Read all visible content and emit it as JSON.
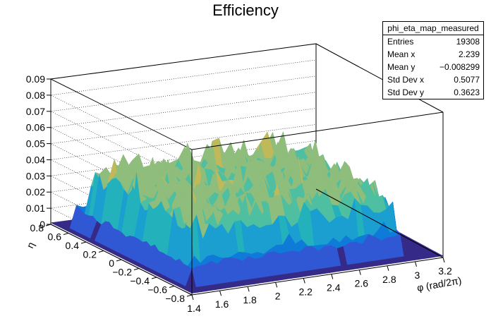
{
  "chart_data": {
    "type": "surface",
    "title": "Efficiency",
    "xlabel": "φ (rad/2π)",
    "ylabel": "η",
    "zlabel": "",
    "xlim": [
      1.4,
      3.2
    ],
    "ylim": [
      -0.8,
      0.8
    ],
    "zlim": [
      0,
      0.09
    ],
    "x_ticks": [
      "1.4",
      "1.6",
      "1.8",
      "2",
      "2.2",
      "2.4",
      "2.6",
      "2.8",
      "3",
      "3.2"
    ],
    "y_ticks": [
      "0.8",
      "0.6",
      "0.4",
      "0.2",
      "0",
      "−0.2",
      "−0.4",
      "−0.6",
      "−0.8"
    ],
    "z_ticks": [
      "0",
      "0.01",
      "0.02",
      "0.03",
      "0.04",
      "0.05",
      "0.06",
      "0.07",
      "0.08",
      "0.09"
    ],
    "colormap": [
      "#352a87",
      "#3158d4",
      "#0f7bd9",
      "#1a9fd0",
      "#23b2bc",
      "#4ebfa0",
      "#8ebd7c",
      "#c0b95a",
      "#e8b838",
      "#f9d523"
    ],
    "surface_summary": "Flat near 0 at φ<1.45 and φ>3.05 and |η|>0.7; jagged plateau ~0.03–0.05 with spikes up to ~0.06 elsewhere",
    "grid": true
  },
  "stats_box": {
    "name": "phi_eta_map_measured",
    "rows": [
      {
        "label": "Entries",
        "value": "19308"
      },
      {
        "label": "Mean x",
        "value": "2.239"
      },
      {
        "label": "Mean y",
        "value": "−0.008299"
      },
      {
        "label": "Std Dev x",
        "value": "0.5077"
      },
      {
        "label": "Std Dev y",
        "value": "0.3623"
      }
    ]
  }
}
